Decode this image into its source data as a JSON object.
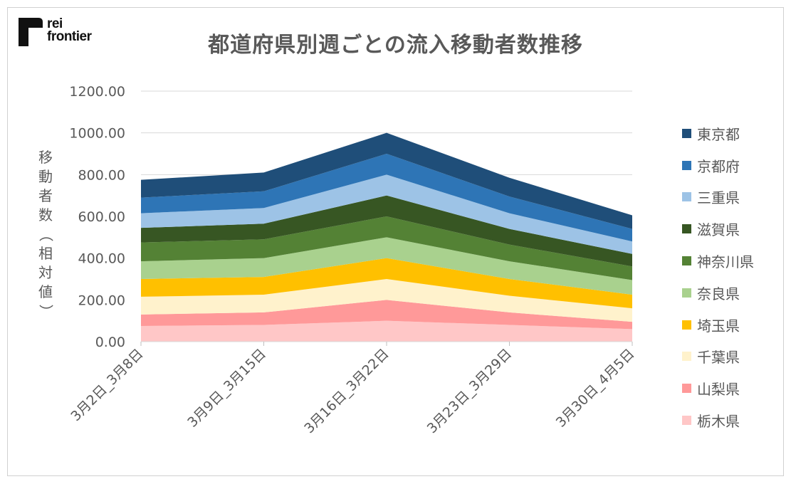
{
  "logo": {
    "line1": "rei",
    "line2": "frontier"
  },
  "chart_data": {
    "type": "area",
    "stacked": true,
    "title": "都道府県別週ごとの流入移動者数推移",
    "ylabel": "移動者数（相対値）",
    "xlabel": "",
    "ylim": [
      0,
      1200
    ],
    "yticks": [
      "0.00",
      "200.00",
      "400.00",
      "600.00",
      "800.00",
      "1000.00",
      "1200.00"
    ],
    "grid": true,
    "legend_position": "right",
    "categories": [
      "3月2日_3月8日",
      "3月9日_3月15日",
      "3月16日_3月22日",
      "3月23日_3月29日",
      "3月30日_4月5日"
    ],
    "series": [
      {
        "name": "栃木県",
        "color": "#FFC7C7",
        "values": [
          75,
          80,
          100,
          80,
          60
        ]
      },
      {
        "name": "山梨県",
        "color": "#FF9999",
        "values": [
          55,
          60,
          100,
          60,
          35
        ]
      },
      {
        "name": "千葉県",
        "color": "#FFF2CC",
        "values": [
          85,
          85,
          100,
          80,
          65
        ]
      },
      {
        "name": "埼玉県",
        "color": "#FFC000",
        "values": [
          85,
          85,
          100,
          80,
          65
        ]
      },
      {
        "name": "奈良県",
        "color": "#A9D18E",
        "values": [
          85,
          90,
          100,
          85,
          70
        ]
      },
      {
        "name": "神奈川県",
        "color": "#548235",
        "values": [
          90,
          90,
          100,
          80,
          65
        ]
      },
      {
        "name": "滋賀県",
        "color": "#375623",
        "values": [
          70,
          75,
          100,
          75,
          60
        ]
      },
      {
        "name": "三重県",
        "color": "#9DC3E6",
        "values": [
          70,
          75,
          100,
          75,
          60
        ]
      },
      {
        "name": "京都府",
        "color": "#2E75B6",
        "values": [
          75,
          80,
          100,
          80,
          60
        ]
      },
      {
        "name": "東京都",
        "color": "#1F4E79",
        "values": [
          85,
          90,
          100,
          90,
          65
        ]
      }
    ]
  }
}
